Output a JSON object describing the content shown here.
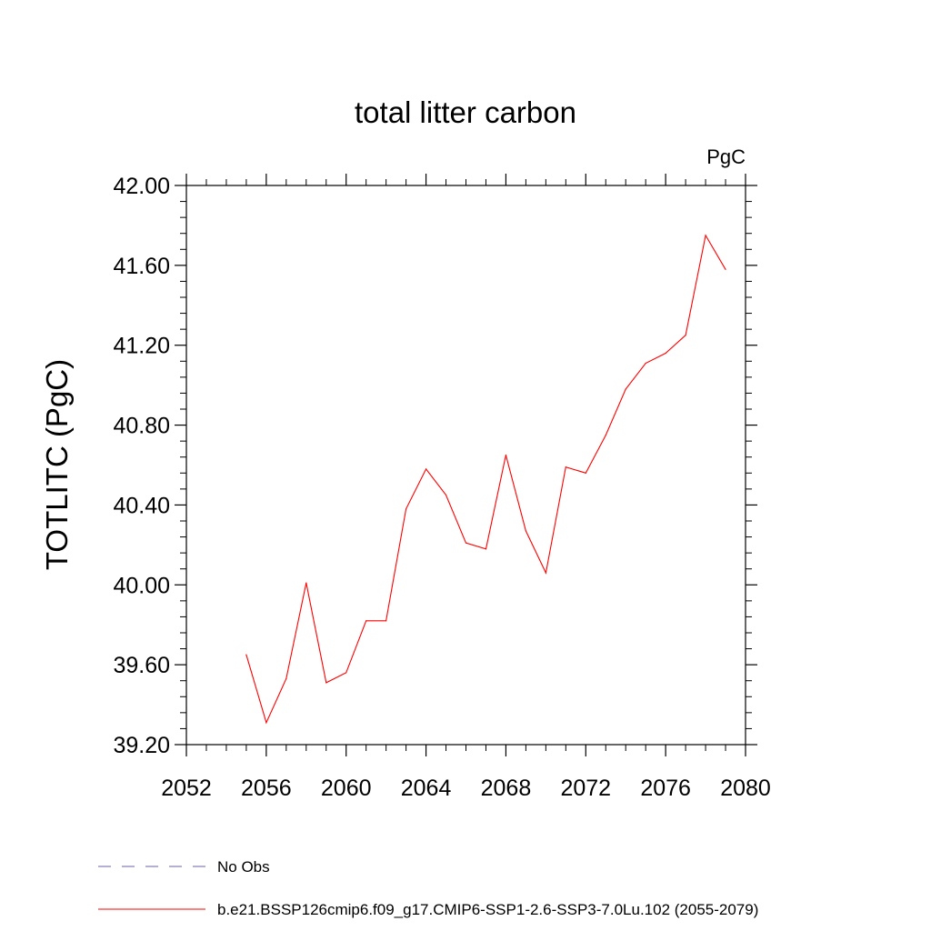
{
  "chart_data": {
    "type": "line",
    "title": "total litter carbon",
    "units_label": "PgC",
    "ylabel": "TOTLITC  (PgC)",
    "xlabel": "",
    "xlim": [
      2052,
      2080
    ],
    "ylim": [
      39.2,
      42.0
    ],
    "x_ticks": [
      "2052",
      "2056",
      "2060",
      "2064",
      "2068",
      "2072",
      "2076",
      "2080"
    ],
    "y_ticks": [
      "39.20",
      "39.60",
      "40.00",
      "40.40",
      "40.80",
      "41.20",
      "41.60",
      "42.00"
    ],
    "grid": false,
    "legend_placement": "bottom",
    "series": [
      {
        "name": "b.e21.BSSP126cmip6.f09_g17.CMIP6-SSP1-2.6-SSP3-7.0Lu.102 (2055-2079)",
        "color": "#ff0000",
        "x": [
          2055,
          2056,
          2057,
          2058,
          2059,
          2060,
          2061,
          2062,
          2063,
          2064,
          2065,
          2066,
          2067,
          2068,
          2069,
          2070,
          2071,
          2072,
          2073,
          2074,
          2075,
          2076,
          2077,
          2078,
          2079
        ],
        "values": [
          39.65,
          39.31,
          39.53,
          40.01,
          39.51,
          39.56,
          39.82,
          39.82,
          40.38,
          40.58,
          40.45,
          40.21,
          40.18,
          40.65,
          40.27,
          40.06,
          40.59,
          40.56,
          40.75,
          40.98,
          41.11,
          41.16,
          41.25,
          41.75,
          41.58
        ]
      }
    ],
    "legend": [
      {
        "label": "No Obs",
        "color": "#6e5fa8",
        "style": "dashed"
      },
      {
        "label": "b.e21.BSSP126cmip6.f09_g17.CMIP6-SSP1-2.6-SSP3-7.0Lu.102 (2055-2079)",
        "color": "#ff0000",
        "style": "solid"
      }
    ]
  }
}
